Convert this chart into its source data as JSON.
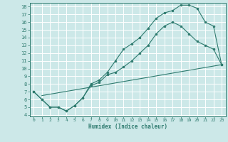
{
  "xlabel": "Humidex (Indice chaleur)",
  "bg_color": "#cce8e8",
  "grid_color": "#ffffff",
  "line_color": "#2d7a6e",
  "xlim": [
    -0.5,
    23.5
  ],
  "ylim": [
    3.8,
    18.5
  ],
  "xticks": [
    0,
    1,
    2,
    3,
    4,
    5,
    6,
    7,
    8,
    9,
    10,
    11,
    12,
    13,
    14,
    15,
    16,
    17,
    18,
    19,
    20,
    21,
    22,
    23
  ],
  "yticks": [
    4,
    5,
    6,
    7,
    8,
    9,
    10,
    11,
    12,
    13,
    14,
    15,
    16,
    17,
    18
  ],
  "line1_x": [
    0,
    1,
    2,
    3,
    4,
    5,
    6,
    7,
    8,
    9,
    10,
    11,
    12,
    13,
    14,
    15,
    16,
    17,
    18,
    19,
    20,
    21,
    22,
    23
  ],
  "line1_y": [
    7.0,
    6.0,
    5.0,
    5.0,
    4.5,
    5.2,
    6.2,
    8.0,
    8.5,
    9.5,
    11.0,
    12.5,
    13.2,
    14.0,
    15.2,
    16.5,
    17.2,
    17.5,
    18.2,
    18.2,
    17.8,
    16.0,
    15.5,
    10.5
  ],
  "line2_x": [
    0,
    1,
    2,
    3,
    4,
    5,
    6,
    7,
    8,
    9,
    10,
    11,
    12,
    13,
    14,
    15,
    16,
    17,
    18,
    19,
    20,
    21,
    22,
    23
  ],
  "line2_y": [
    7.0,
    6.0,
    5.0,
    5.0,
    4.5,
    5.2,
    6.2,
    7.8,
    8.2,
    9.2,
    9.5,
    10.2,
    11.0,
    12.0,
    13.0,
    14.5,
    15.5,
    16.0,
    15.5,
    14.5,
    13.5,
    13.0,
    12.5,
    10.5
  ],
  "line3_x": [
    1,
    23
  ],
  "line3_y": [
    6.5,
    10.5
  ]
}
